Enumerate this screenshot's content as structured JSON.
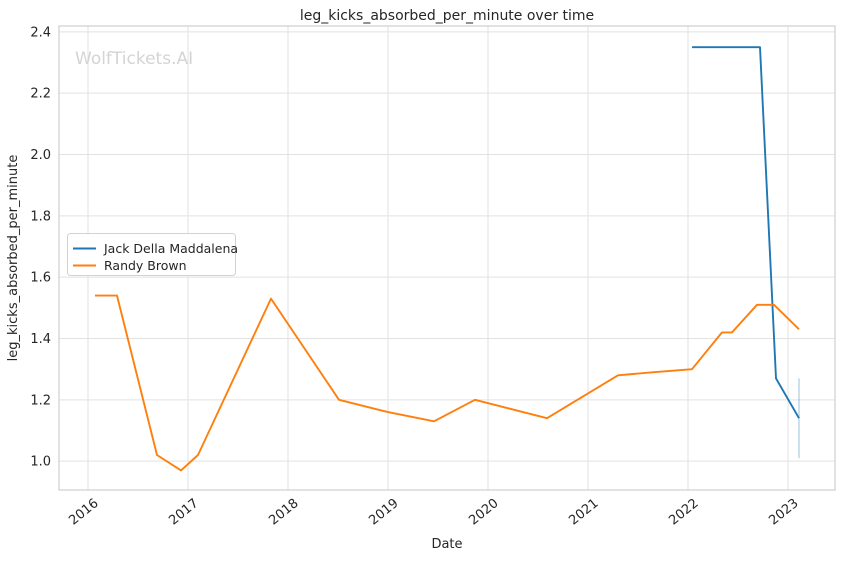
{
  "watermark": "WolfTickets.AI",
  "chart_data": {
    "type": "line",
    "title": "leg_kicks_absorbed_per_minute over time",
    "xlabel": "Date",
    "ylabel": "leg_kicks_absorbed_per_minute",
    "x_unit": "decimal_year",
    "xlim": [
      2015.71,
      2023.47
    ],
    "ylim": [
      0.906,
      2.419
    ],
    "grid": true,
    "legend_position": "center-left",
    "x_tick_values": [
      2016,
      2017,
      2018,
      2019,
      2020,
      2021,
      2022,
      2023
    ],
    "x_tick_labels": [
      "2016",
      "2017",
      "2018",
      "2019",
      "2020",
      "2021",
      "2022",
      "2023"
    ],
    "y_tick_values": [
      1.0,
      1.2,
      1.4,
      1.6,
      1.8,
      2.0,
      2.2,
      2.4
    ],
    "y_tick_labels": [
      "1.0",
      "1.2",
      "1.4",
      "1.6",
      "1.8",
      "2.0",
      "2.2",
      "2.4"
    ],
    "series": [
      {
        "name": "Jack Della Maddalena",
        "color": "#1f77b4",
        "x": [
          2022.04,
          2022.72,
          2022.88,
          2023.11
        ],
        "y": [
          2.35,
          2.35,
          1.27,
          1.14
        ],
        "error_bar_last": {
          "x": 2023.11,
          "y_low": 1.01,
          "y_high": 1.27,
          "color": "rgba(31,119,180,0.3)"
        }
      },
      {
        "name": "Randy Brown",
        "color": "#ff7f0e",
        "x": [
          2016.07,
          2016.29,
          2016.69,
          2016.93,
          2017.1,
          2017.83,
          2018.51,
          2019.0,
          2019.46,
          2019.87,
          2020.59,
          2021.3,
          2021.66,
          2022.04,
          2022.34,
          2022.44,
          2022.69,
          2022.86,
          2023.11
        ],
        "y": [
          1.54,
          1.54,
          1.02,
          0.97,
          1.02,
          1.53,
          1.2,
          1.16,
          1.13,
          1.2,
          1.14,
          1.28,
          1.29,
          1.3,
          1.42,
          1.42,
          1.51,
          1.51,
          1.43
        ]
      }
    ]
  },
  "legend": {
    "items": [
      {
        "label": "Jack Della Maddalena",
        "color": "#1f77b4"
      },
      {
        "label": "Randy Brown",
        "color": "#ff7f0e"
      }
    ]
  }
}
